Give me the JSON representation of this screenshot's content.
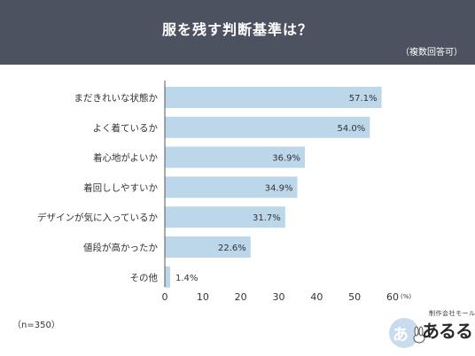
{
  "header": {
    "title": "服を残す判断基準は？",
    "note": "（複数回答可）"
  },
  "footer": {
    "sample_size": "（n=350）"
  },
  "logo": {
    "small_text": "制作会社モール",
    "main_text": "あるる",
    "mark_char": "あ"
  },
  "colors": {
    "header_bg": "#4d5260",
    "bar": "#bcd6ea",
    "axis": "#555555"
  },
  "chart_data": {
    "type": "bar",
    "orientation": "horizontal",
    "title": "服を残す判断基準は？",
    "categories": [
      "まだきれいな状態か",
      "よく着ているか",
      "着心地がよいか",
      "着回ししやすいか",
      "デザインが気に入っているか",
      "値段が高かったか",
      "その他"
    ],
    "values": [
      57.1,
      54.0,
      36.9,
      34.9,
      31.7,
      22.6,
      1.4
    ],
    "value_labels": [
      "57.1%",
      "54.0%",
      "36.9%",
      "34.9%",
      "31.7%",
      "22.6%",
      "1.4%"
    ],
    "xlim": [
      0,
      60
    ],
    "xticks": [
      0,
      10,
      20,
      30,
      40,
      50,
      60
    ],
    "xtick_labels": [
      "0",
      "10",
      "20",
      "30",
      "40",
      "50",
      "60"
    ],
    "unit_label": "(%)",
    "grid": false
  }
}
